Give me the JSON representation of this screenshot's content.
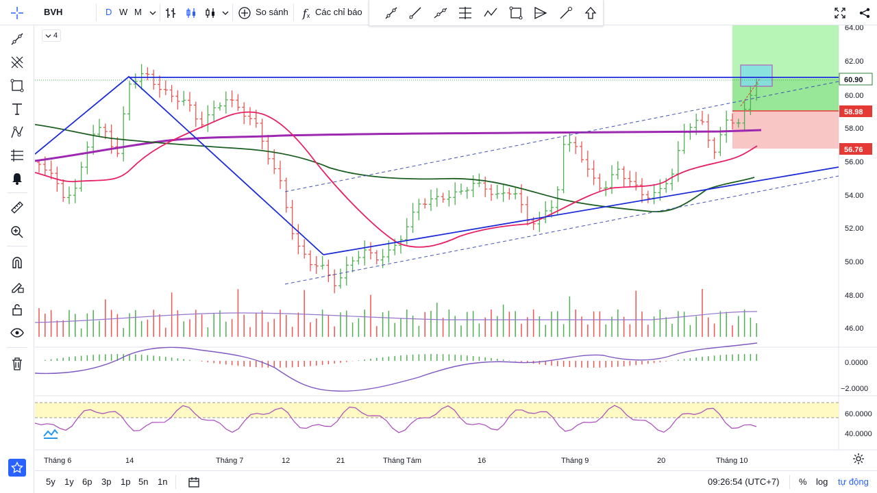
{
  "header": {
    "symbol": "BVH",
    "intervals": [
      "D",
      "W",
      "M"
    ],
    "compare_label": "So sánh",
    "indicators_label": "Các chỉ báo"
  },
  "legend": {
    "collapsed_count": "4"
  },
  "price_axis": {
    "ticks": [
      "64.00",
      "62.00",
      "60.00",
      "58.00",
      "56.00",
      "54.00",
      "52.00",
      "50.00",
      "48.00",
      "46.00"
    ],
    "macd_ticks": [
      "0.0000",
      "−2.0000"
    ],
    "rsi_ticks": [
      "60.0000",
      "40.0000"
    ],
    "last_price": "60.90",
    "target_price": "58.98",
    "stop_price": "56.76"
  },
  "time_axis": {
    "labels": [
      "Tháng 6",
      "14",
      "Tháng 7",
      "12",
      "21",
      "Tháng Tám",
      "16",
      "Tháng 9",
      "20",
      "Tháng 10"
    ]
  },
  "bottom": {
    "ranges": [
      "5y",
      "1y",
      "6p",
      "3p",
      "1p",
      "5n",
      "1n"
    ],
    "clock": "09:26:54 (UTC+7)",
    "percent_label": "%",
    "log_label": "log",
    "auto_label": "tự động"
  },
  "colors": {
    "up": "#26a69a",
    "up_bar": "#4caf50",
    "down": "#ef5350",
    "accent": "#2962ff",
    "ma_purple": "#9c27b0",
    "ma_pink": "#e91e63",
    "ma_green": "#1b5e20"
  }
}
